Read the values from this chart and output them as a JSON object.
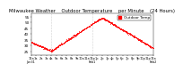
{
  "title": "Milwaukee Weather    Outdoor Temperature    per Minute    (24 Hours)",
  "title_fontsize": 3.8,
  "background_color": "#ffffff",
  "dot_color": "#ff0000",
  "dot_size": 0.3,
  "ylim": [
    22,
    58
  ],
  "yticks": [
    25,
    30,
    35,
    40,
    45,
    50,
    55
  ],
  "ylabel_fontsize": 3.0,
  "xlabel_fontsize": 2.5,
  "vline_positions": [
    240,
    720
  ],
  "vline_color": "#aaaaaa",
  "vline_style": ":",
  "legend_label": "Outdoor Temp",
  "legend_color": "#ff0000",
  "legend_fontsize": 3.0,
  "xtick_minutes": [
    0,
    60,
    120,
    180,
    240,
    300,
    360,
    420,
    480,
    540,
    600,
    660,
    720,
    780,
    840,
    900,
    960,
    1020,
    1080,
    1140,
    1200,
    1260,
    1320,
    1380,
    1440
  ],
  "xtick_labels": [
    "12a\nJan31",
    "1a",
    "2a",
    "3a",
    "4a",
    "5a",
    "6a",
    "7a",
    "8a",
    "9a",
    "10a",
    "11a",
    "12p\nFeb1",
    "1p",
    "2p",
    "3p",
    "4p",
    "5p",
    "6p",
    "7p",
    "8p",
    "9p",
    "10p",
    "11p",
    "12a\nFeb2"
  ]
}
